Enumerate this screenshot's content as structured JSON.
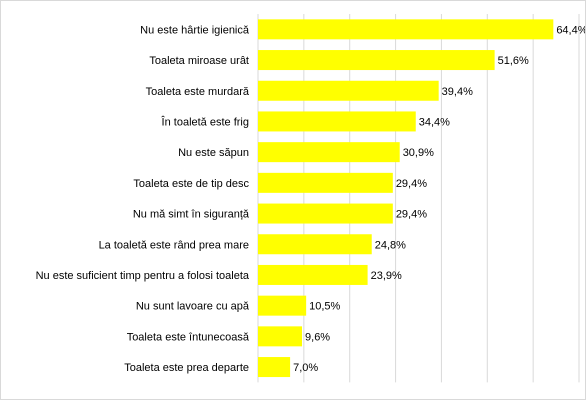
{
  "chart_data": {
    "type": "bar",
    "orientation": "horizontal",
    "title": "",
    "xlabel": "",
    "ylabel": "",
    "value_format": "percent-comma",
    "xlim": [
      0,
      70
    ],
    "grid": "vertical",
    "legend": "none",
    "bar_color": "#ffff00",
    "grid_color": "#d9d9d9",
    "categories": [
      "Nu este hârtie igienică",
      "Toaleta miroase urât",
      "Toaleta este murdară",
      "În toaletă este frig",
      "Nu este săpun",
      "Toaleta este de tip desc",
      "Nu mă simt în siguranță",
      "La toaletă este rând prea mare",
      "Nu este suficient timp pentru a folosi toaleta",
      "Nu sunt lavoare cu apă",
      "Toaleta este întunecoasă",
      "Toaleta este prea departe"
    ],
    "values": [
      64.4,
      51.6,
      39.4,
      34.4,
      30.9,
      29.4,
      29.4,
      24.8,
      23.9,
      10.5,
      9.6,
      7.0
    ],
    "data_labels": [
      "64,4%",
      "51,6%",
      "39,4%",
      "34,4%",
      "30,9%",
      "29,4%",
      "29,4%",
      "24,8%",
      "23,9%",
      "10,5%",
      "9,6%",
      "7,0%"
    ]
  }
}
